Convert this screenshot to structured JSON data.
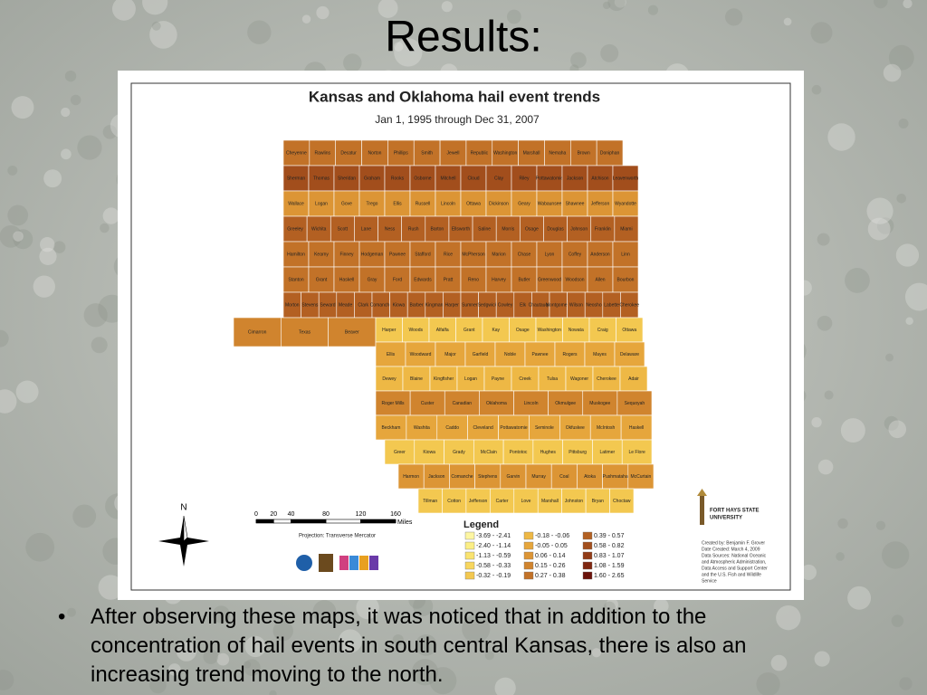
{
  "slide": {
    "title": "Results:",
    "bullet": "After observing these maps, it was noticed that in addition to the concentration of hail events in south central Kansas, there is also an increasing trend moving to the north."
  },
  "map": {
    "title": "Kansas and Oklahoma hail event trends",
    "subtitle": "Jan 1, 1995 through Dec 31, 2007",
    "kansas": [
      [
        "Cheyenne",
        "Rawlins",
        "Decatur",
        "Norton",
        "Phillips",
        "Smith",
        "Jewell",
        "Republic",
        "Washington",
        "Marshall",
        "Nemaha",
        "Brown",
        "Doniphan"
      ],
      [
        "Sherman",
        "Thomas",
        "Sheridan",
        "Graham",
        "Rooks",
        "Osborne",
        "Mitchell",
        "Cloud",
        "Clay",
        "Riley",
        "Pottawatomie",
        "Jackson",
        "Atchison",
        "Leavenworth"
      ],
      [
        "Wallace",
        "Logan",
        "Gove",
        "Trego",
        "Ellis",
        "Russell",
        "Lincoln",
        "Ottawa",
        "Dickinson",
        "Geary",
        "Wabaunsee",
        "Shawnee",
        "Jefferson",
        "Wyandotte"
      ],
      [
        "Greeley",
        "Wichita",
        "Scott",
        "Lane",
        "Ness",
        "Rush",
        "Barton",
        "Ellsworth",
        "Saline",
        "Morris",
        "Osage",
        "Douglas",
        "Johnson",
        "Franklin",
        "Miami"
      ],
      [
        "Hamilton",
        "Kearny",
        "Finney",
        "Hodgeman",
        "Pawnee",
        "Stafford",
        "Rice",
        "McPherson",
        "Marion",
        "Chase",
        "Lyon",
        "Coffey",
        "Anderson",
        "Linn"
      ],
      [
        "Stanton",
        "Grant",
        "Haskell",
        "Gray",
        "Ford",
        "Edwards",
        "Pratt",
        "Reno",
        "Harvey",
        "Butler",
        "Greenwood",
        "Woodson",
        "Allen",
        "Bourbon"
      ],
      [
        "Morton",
        "Stevens",
        "Seward",
        "Meade",
        "Clark",
        "Comanche",
        "Kiowa",
        "Barber",
        "Kingman",
        "Harper",
        "Sumner",
        "Sedgwick",
        "Cowley",
        "Elk",
        "Chautauqua",
        "Montgomery",
        "Wilson",
        "Neosho",
        "Labette",
        "Cherokee"
      ]
    ],
    "oklahoma_panhandle": [
      "Cimarron",
      "Texas",
      "Beaver"
    ],
    "oklahoma": [
      [
        "Harper",
        "Woods",
        "Alfalfa",
        "Grant",
        "Kay",
        "Osage",
        "Washington",
        "Nowata",
        "Craig",
        "Ottawa"
      ],
      [
        "Ellis",
        "Woodward",
        "Major",
        "Garfield",
        "Noble",
        "Pawnee",
        "Rogers",
        "Mayes",
        "Delaware"
      ],
      [
        "Dewey",
        "Blaine",
        "Kingfisher",
        "Logan",
        "Payne",
        "Creek",
        "Tulsa",
        "Wagoner",
        "Cherokee",
        "Adair"
      ],
      [
        "Roger Mills",
        "Custer",
        "Canadian",
        "Oklahoma",
        "Lincoln",
        "Okmulgee",
        "Muskogee",
        "Sequoyah"
      ],
      [
        "Beckham",
        "Washita",
        "Caddo",
        "Cleveland",
        "Pottawatomie",
        "Seminole",
        "Okfuskee",
        "McIntosh",
        "Haskell"
      ],
      [
        "Greer",
        "Kiowa",
        "Grady",
        "McClain",
        "Pontotoc",
        "Hughes",
        "Pittsburg",
        "Latimer",
        "Le Flore"
      ],
      [
        "Harmon",
        "Jackson",
        "Comanche",
        "Stephens",
        "Garvin",
        "Murray",
        "Coal",
        "Atoka",
        "Pushmataha",
        "McCurtain"
      ],
      [
        "Tillman",
        "Cotton",
        "Jefferson",
        "Carter",
        "Love",
        "Marshall",
        "Johnston",
        "Bryan",
        "Choctaw"
      ]
    ],
    "north": "N",
    "scale": {
      "ticks": [
        0,
        20,
        40,
        80,
        120,
        160
      ],
      "unit": "Miles"
    },
    "projection": "Projection: Transverse Mercator",
    "legend": {
      "title": "Legend",
      "items": [
        {
          "label": "-3.69 - -2.41",
          "color": "#fdf6a2"
        },
        {
          "label": "-2.40 - -1.14",
          "color": "#fbee86"
        },
        {
          "label": "-1.13 - -0.59",
          "color": "#f9e370"
        },
        {
          "label": "-0.58 - -0.33",
          "color": "#f7d65e"
        },
        {
          "label": "-0.32 - -0.19",
          "color": "#f3c850"
        },
        {
          "label": "-0.18 - -0.06",
          "color": "#eeb845"
        },
        {
          "label": "-0.05 - 0.05",
          "color": "#e6a63c"
        },
        {
          "label": "0.06 - 0.14",
          "color": "#dc9535"
        },
        {
          "label": "0.15 - 0.26",
          "color": "#d0842e"
        },
        {
          "label": "0.27 - 0.38",
          "color": "#c27228"
        },
        {
          "label": "0.39 - 0.57",
          "color": "#b36022"
        },
        {
          "label": "0.58 - 0.82",
          "color": "#a24e1c"
        },
        {
          "label": "0.83 - 1.07",
          "color": "#913b16"
        },
        {
          "label": "1.08 - 1.59",
          "color": "#7f2610"
        },
        {
          "label": "1.60 - 2.65",
          "color": "#6b120a"
        }
      ]
    },
    "university": [
      "FORT HAYS STATE",
      "UNIVERSITY"
    ],
    "credits": [
      "Created by: Benjamin F. Grover",
      "Date Created: March 4, 2009",
      "Data Sources: National Oceanic",
      "and Atmospheric Administration,",
      "Data Access and Support Center",
      "and the U.S. Fish and Wildlife",
      "Service"
    ]
  }
}
